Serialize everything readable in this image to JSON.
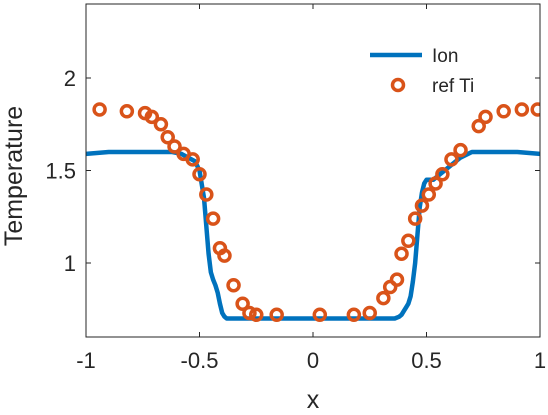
{
  "chart_data": {
    "type": "line",
    "title": "",
    "xlabel": "x",
    "ylabel": "Temperature",
    "xlim": [
      -1,
      1
    ],
    "ylim": [
      0.6,
      2.4
    ],
    "xticks": [
      -1,
      -0.5,
      0,
      0.5,
      1
    ],
    "xtick_labels": [
      "-1",
      "-0.5",
      "0",
      "0.5",
      "1"
    ],
    "yticks": [
      1,
      1.5,
      2
    ],
    "ytick_labels": [
      "1",
      "1.5",
      "2"
    ],
    "grid": false,
    "legend_position": "top-right",
    "series": [
      {
        "name": "Ion",
        "style": "line",
        "color": "#0072BD",
        "x": [
          -1.0,
          -0.9,
          -0.8,
          -0.7,
          -0.62,
          -0.58,
          -0.55,
          -0.52,
          -0.5,
          -0.48,
          -0.47,
          -0.46,
          -0.45,
          -0.44,
          -0.43,
          -0.42,
          -0.41,
          -0.4,
          -0.39,
          -0.38,
          -0.37,
          -0.3,
          -0.2,
          -0.1,
          0.0,
          0.1,
          0.2,
          0.3,
          0.36,
          0.38,
          0.39,
          0.4,
          0.41,
          0.42,
          0.43,
          0.44,
          0.45,
          0.46,
          0.47,
          0.48,
          0.49,
          0.5,
          0.53,
          0.55,
          0.6,
          0.65,
          0.7,
          0.8,
          0.9,
          1.0
        ],
        "y": [
          1.59,
          1.6,
          1.6,
          1.6,
          1.6,
          1.59,
          1.57,
          1.55,
          1.5,
          1.35,
          1.2,
          1.05,
          0.95,
          0.91,
          0.88,
          0.84,
          0.78,
          0.73,
          0.71,
          0.7,
          0.7,
          0.7,
          0.7,
          0.7,
          0.7,
          0.7,
          0.7,
          0.7,
          0.7,
          0.71,
          0.72,
          0.74,
          0.76,
          0.78,
          0.82,
          0.9,
          1.0,
          1.15,
          1.3,
          1.38,
          1.43,
          1.45,
          1.45,
          1.47,
          1.52,
          1.57,
          1.6,
          1.6,
          1.6,
          1.59
        ]
      },
      {
        "name": "ref Ti",
        "style": "marker",
        "marker": "circle",
        "color": "#D95319",
        "x": [
          -0.94,
          -0.82,
          -0.74,
          -0.71,
          -0.67,
          -0.64,
          -0.61,
          -0.57,
          -0.53,
          -0.5,
          -0.47,
          -0.44,
          -0.41,
          -0.39,
          -0.35,
          -0.31,
          -0.28,
          -0.25,
          -0.16,
          0.03,
          0.18,
          0.25,
          0.31,
          0.34,
          0.37,
          0.39,
          0.42,
          0.45,
          0.48,
          0.51,
          0.54,
          0.57,
          0.61,
          0.65,
          0.73,
          0.76,
          0.84,
          0.92,
          0.99
        ],
        "y": [
          1.83,
          1.82,
          1.81,
          1.79,
          1.75,
          1.68,
          1.63,
          1.59,
          1.56,
          1.48,
          1.37,
          1.24,
          1.08,
          1.04,
          0.88,
          0.78,
          0.73,
          0.72,
          0.72,
          0.72,
          0.72,
          0.73,
          0.81,
          0.87,
          0.91,
          1.05,
          1.12,
          1.24,
          1.31,
          1.37,
          1.43,
          1.48,
          1.56,
          1.61,
          1.74,
          1.79,
          1.82,
          1.83,
          1.83
        ]
      }
    ]
  }
}
